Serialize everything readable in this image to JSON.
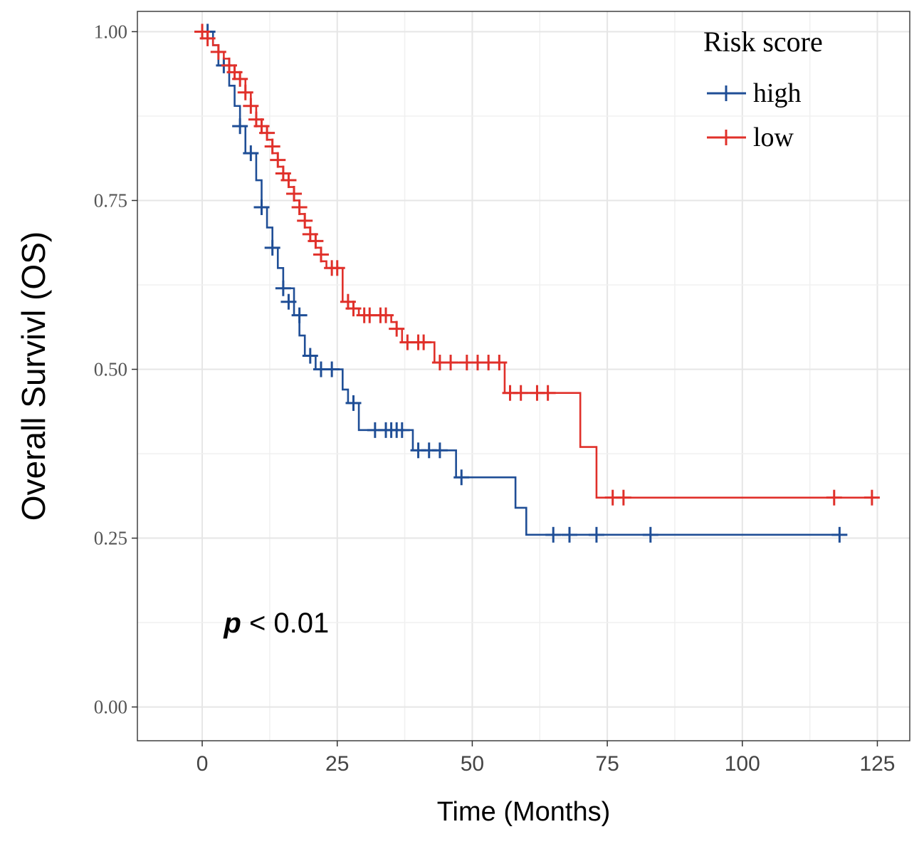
{
  "chart_data": {
    "type": "line",
    "subtype": "kaplan-meier",
    "xlabel": "Time (Months)",
    "ylabel": "Overall Survivl (OS)",
    "xlim": [
      -12,
      131
    ],
    "ylim": [
      -0.05,
      1.03
    ],
    "x_ticks": [
      0,
      25,
      50,
      75,
      100,
      125
    ],
    "x_tick_labels": [
      "0",
      "25",
      "50",
      "75",
      "100",
      "125"
    ],
    "y_ticks": [
      0.0,
      0.25,
      0.5,
      0.75,
      1.0
    ],
    "y_tick_labels": [
      "0.00",
      "0.25",
      "0.50",
      "0.75",
      "1.00"
    ],
    "grid": true,
    "legend": {
      "title": "Risk score",
      "position": "top-right"
    },
    "annotation": {
      "italic": "p",
      "rest": " < 0.01"
    },
    "series": [
      {
        "name": "high",
        "color": "#1f4e96",
        "steps": [
          [
            0,
            1.0
          ],
          [
            2,
            0.98
          ],
          [
            3,
            0.95
          ],
          [
            5,
            0.92
          ],
          [
            6,
            0.89
          ],
          [
            7,
            0.86
          ],
          [
            8,
            0.82
          ],
          [
            10,
            0.78
          ],
          [
            11,
            0.74
          ],
          [
            12,
            0.71
          ],
          [
            13,
            0.68
          ],
          [
            14,
            0.65
          ],
          [
            15,
            0.62
          ],
          [
            17,
            0.58
          ],
          [
            18,
            0.55
          ],
          [
            19,
            0.52
          ],
          [
            21,
            0.5
          ],
          [
            26,
            0.47
          ],
          [
            27,
            0.45
          ],
          [
            29,
            0.41
          ],
          [
            39,
            0.38
          ],
          [
            47,
            0.34
          ],
          [
            58,
            0.295
          ],
          [
            60,
            0.255
          ]
        ],
        "end_x": 118,
        "censored": [
          [
            1,
            1.0
          ],
          [
            4,
            0.95
          ],
          [
            7,
            0.86
          ],
          [
            9,
            0.82
          ],
          [
            11,
            0.74
          ],
          [
            13,
            0.68
          ],
          [
            15,
            0.62
          ],
          [
            16,
            0.6
          ],
          [
            18,
            0.58
          ],
          [
            20,
            0.52
          ],
          [
            22,
            0.5
          ],
          [
            24,
            0.5
          ],
          [
            28,
            0.45
          ],
          [
            32,
            0.41
          ],
          [
            34,
            0.41
          ],
          [
            35,
            0.41
          ],
          [
            36,
            0.41
          ],
          [
            37,
            0.41
          ],
          [
            40,
            0.38
          ],
          [
            42,
            0.38
          ],
          [
            44,
            0.38
          ],
          [
            48,
            0.34
          ],
          [
            65,
            0.255
          ],
          [
            68,
            0.255
          ],
          [
            73,
            0.255
          ],
          [
            83,
            0.255
          ],
          [
            118,
            0.255
          ]
        ]
      },
      {
        "name": "low",
        "color": "#e0302a",
        "steps": [
          [
            0,
            1.0
          ],
          [
            1,
            0.99
          ],
          [
            2,
            0.98
          ],
          [
            3,
            0.97
          ],
          [
            4,
            0.96
          ],
          [
            5,
            0.95
          ],
          [
            6,
            0.94
          ],
          [
            7,
            0.93
          ],
          [
            8,
            0.91
          ],
          [
            9,
            0.89
          ],
          [
            10,
            0.87
          ],
          [
            11,
            0.86
          ],
          [
            12,
            0.84
          ],
          [
            13,
            0.82
          ],
          [
            14,
            0.8
          ],
          [
            15,
            0.78
          ],
          [
            16,
            0.77
          ],
          [
            17,
            0.75
          ],
          [
            18,
            0.73
          ],
          [
            19,
            0.71
          ],
          [
            20,
            0.69
          ],
          [
            21,
            0.68
          ],
          [
            22,
            0.66
          ],
          [
            23,
            0.65
          ],
          [
            26,
            0.6
          ],
          [
            27,
            0.59
          ],
          [
            29,
            0.58
          ],
          [
            35,
            0.57
          ],
          [
            36,
            0.56
          ],
          [
            37,
            0.54
          ],
          [
            43,
            0.51
          ],
          [
            56,
            0.465
          ],
          [
            70,
            0.385
          ],
          [
            73,
            0.31
          ]
        ],
        "end_x": 125,
        "censored": [
          [
            0,
            1.0
          ],
          [
            1,
            0.99
          ],
          [
            3,
            0.97
          ],
          [
            5,
            0.95
          ],
          [
            6,
            0.94
          ],
          [
            7,
            0.93
          ],
          [
            8,
            0.91
          ],
          [
            9,
            0.89
          ],
          [
            10,
            0.87
          ],
          [
            11,
            0.86
          ],
          [
            12,
            0.85
          ],
          [
            13,
            0.83
          ],
          [
            14,
            0.81
          ],
          [
            15,
            0.79
          ],
          [
            16,
            0.78
          ],
          [
            17,
            0.76
          ],
          [
            18,
            0.74
          ],
          [
            19,
            0.72
          ],
          [
            20,
            0.7
          ],
          [
            21,
            0.69
          ],
          [
            22,
            0.67
          ],
          [
            24,
            0.65
          ],
          [
            25,
            0.65
          ],
          [
            27,
            0.6
          ],
          [
            28,
            0.59
          ],
          [
            30,
            0.58
          ],
          [
            31,
            0.58
          ],
          [
            33,
            0.58
          ],
          [
            34,
            0.58
          ],
          [
            36,
            0.56
          ],
          [
            38,
            0.54
          ],
          [
            40,
            0.54
          ],
          [
            41,
            0.54
          ],
          [
            44,
            0.51
          ],
          [
            46,
            0.51
          ],
          [
            49,
            0.51
          ],
          [
            51,
            0.51
          ],
          [
            53,
            0.51
          ],
          [
            55,
            0.51
          ],
          [
            57,
            0.465
          ],
          [
            59,
            0.465
          ],
          [
            62,
            0.465
          ],
          [
            64,
            0.465
          ],
          [
            76,
            0.31
          ],
          [
            78,
            0.31
          ],
          [
            117,
            0.31
          ],
          [
            124,
            0.31
          ]
        ]
      }
    ]
  }
}
